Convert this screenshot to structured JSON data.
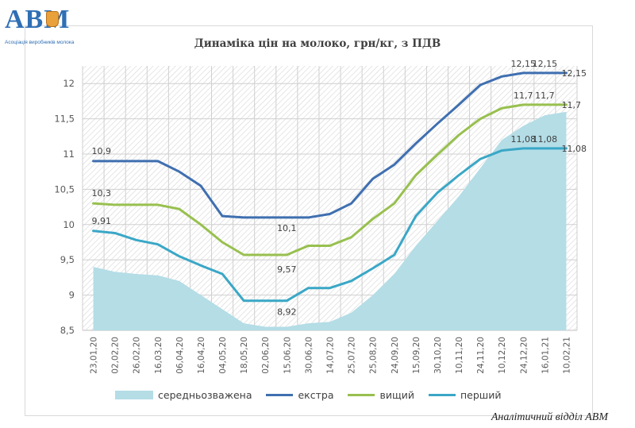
{
  "logo": {
    "mark": "АВМ",
    "subtitle": "Асоціація виробників молока"
  },
  "footer": "Аналітичний відділ АВМ",
  "colors": {
    "area": "#b4dde6",
    "ekstra": "#3f6fb0",
    "vyshchyi": "#98c04f",
    "pershyi": "#3aa7c6"
  },
  "chart_data": {
    "type": "line",
    "title": "Динаміка цін на молоко, грн/кг, з ПДВ",
    "ylim": [
      8.5,
      12.25
    ],
    "yticks": [
      "8,5",
      "9",
      "9,5",
      "10",
      "10,5",
      "11",
      "11,5",
      "12"
    ],
    "categories": [
      "23,01,20",
      "02,02,20",
      "26,02,20",
      "16,03,20",
      "06,04,20",
      "16,04,20",
      "04,05,20",
      "18,05,20",
      "02,06,20",
      "15,06,20",
      "30,06,20",
      "14,07,20",
      "25,07,20",
      "25,08,20",
      "24,09,20",
      "15,09,20",
      "30,10,20",
      "10,11,20",
      "24,11,20",
      "10,12,20",
      "24,12,20",
      "16,01,21",
      "10,02,21"
    ],
    "grid": true,
    "legend_position": "bottom",
    "series": [
      {
        "name": "середньозважена",
        "kind": "area",
        "values": [
          9.4,
          9.33,
          9.3,
          9.28,
          9.2,
          9.0,
          8.8,
          8.6,
          8.55,
          8.55,
          8.6,
          8.62,
          8.75,
          9.0,
          9.3,
          9.7,
          10.05,
          10.4,
          10.8,
          11.2,
          11.4,
          11.55,
          11.6
        ]
      },
      {
        "name": "екстра",
        "kind": "line",
        "values": [
          10.9,
          10.9,
          10.9,
          10.9,
          10.75,
          10.55,
          10.12,
          10.1,
          10.1,
          10.1,
          10.1,
          10.15,
          10.3,
          10.65,
          10.85,
          11.15,
          11.43,
          11.7,
          11.98,
          12.1,
          12.15,
          12.15,
          12.15
        ]
      },
      {
        "name": "вищий",
        "kind": "line",
        "values": [
          10.3,
          10.28,
          10.28,
          10.28,
          10.22,
          10.0,
          9.75,
          9.57,
          9.57,
          9.57,
          9.7,
          9.7,
          9.82,
          10.08,
          10.3,
          10.7,
          10.99,
          11.27,
          11.5,
          11.65,
          11.7,
          11.7,
          11.7
        ]
      },
      {
        "name": "перший",
        "kind": "line",
        "values": [
          9.91,
          9.88,
          9.78,
          9.72,
          9.55,
          9.42,
          9.3,
          8.92,
          8.92,
          8.92,
          9.1,
          9.1,
          9.2,
          9.38,
          9.57,
          10.12,
          10.45,
          10.7,
          10.93,
          11.05,
          11.08,
          11.08,
          11.08
        ]
      }
    ],
    "annotations": [
      {
        "text": "10,9",
        "x": 0,
        "y": 10.9,
        "series": "екстра"
      },
      {
        "text": "10,3",
        "x": 0,
        "y": 10.3,
        "series": "вищий"
      },
      {
        "text": "9,91",
        "x": 0,
        "y": 9.91,
        "series": "перший"
      },
      {
        "text": "10,1",
        "x": 9,
        "y": 10.1,
        "series": "екстра"
      },
      {
        "text": "9,57",
        "x": 9,
        "y": 9.57,
        "series": "вищий"
      },
      {
        "text": "8,92",
        "x": 9,
        "y": 8.92,
        "series": "перший"
      },
      {
        "text": "12,15",
        "x": 20,
        "y": 12.15,
        "series": "екстра"
      },
      {
        "text": "12,15",
        "x": 21,
        "y": 12.15,
        "series": "екстра"
      },
      {
        "text": "12,15",
        "x": 22,
        "y": 12.15,
        "series": "екстра"
      },
      {
        "text": "11,7",
        "x": 20,
        "y": 11.7,
        "series": "вищий"
      },
      {
        "text": "11,7",
        "x": 21,
        "y": 11.7,
        "series": "вищий"
      },
      {
        "text": "11,7",
        "x": 22,
        "y": 11.7,
        "series": "вищий"
      },
      {
        "text": "11,08",
        "x": 20,
        "y": 11.08,
        "series": "перший"
      },
      {
        "text": "11,08",
        "x": 21,
        "y": 11.08,
        "series": "перший"
      },
      {
        "text": "11,08",
        "x": 22,
        "y": 11.08,
        "series": "перший"
      }
    ]
  }
}
